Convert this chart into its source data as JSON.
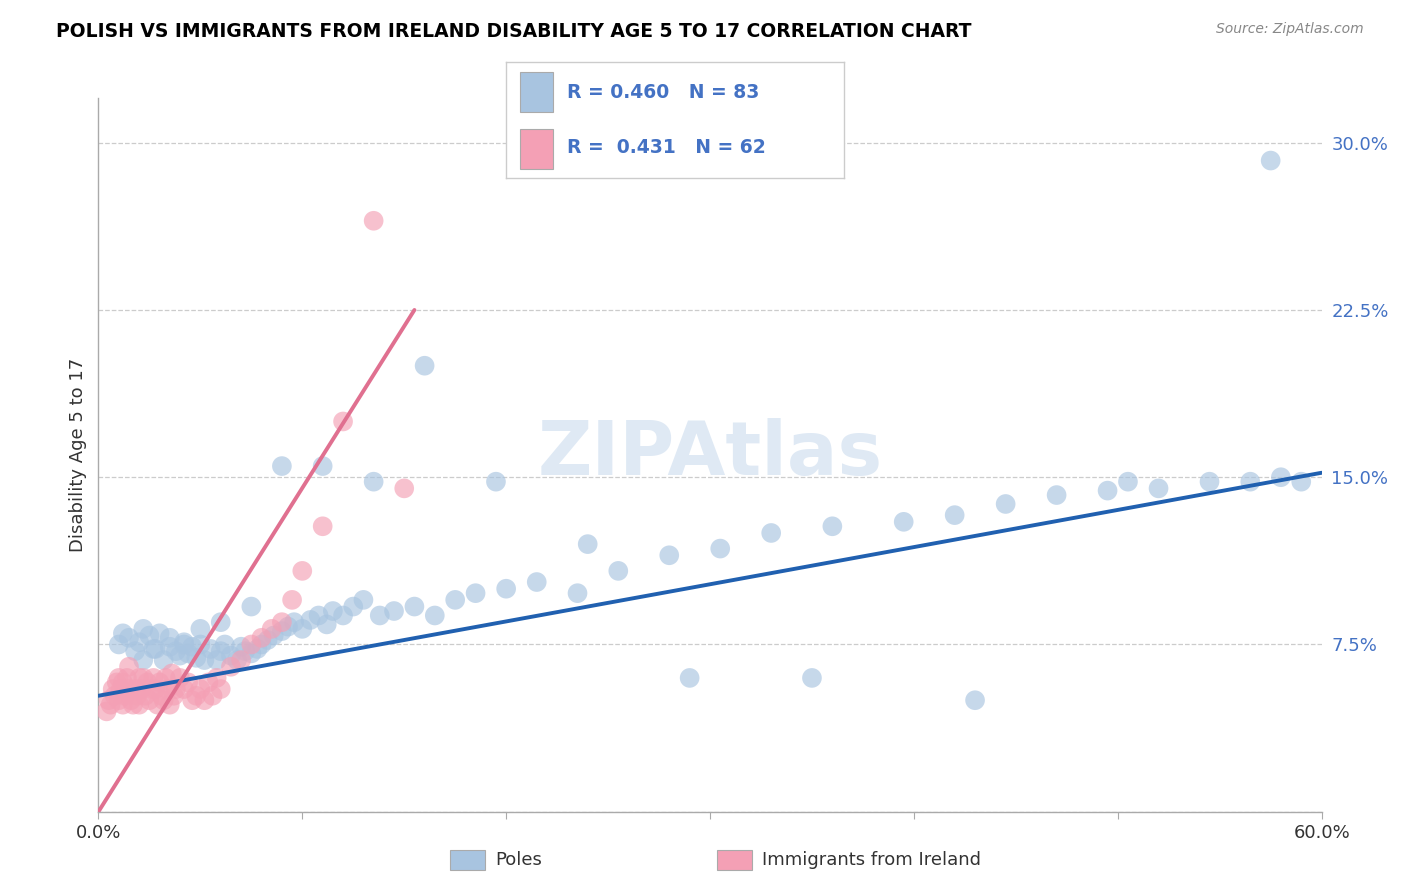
{
  "title": "POLISH VS IMMIGRANTS FROM IRELAND DISABILITY AGE 5 TO 17 CORRELATION CHART",
  "source": "Source: ZipAtlas.com",
  "ylabel": "Disability Age 5 to 17",
  "xlim": [
    0.0,
    0.6
  ],
  "ylim": [
    0.0,
    0.32
  ],
  "xticks": [
    0.0,
    0.1,
    0.2,
    0.3,
    0.4,
    0.5,
    0.6
  ],
  "xticklabels": [
    "0.0%",
    "",
    "",
    "",
    "",
    "",
    "60.0%"
  ],
  "yticks": [
    0.0,
    0.075,
    0.15,
    0.225,
    0.3
  ],
  "yticklabels": [
    "",
    "7.5%",
    "15.0%",
    "22.5%",
    "30.0%"
  ],
  "blue_R": 0.46,
  "blue_N": 83,
  "pink_R": 0.431,
  "pink_N": 62,
  "blue_color": "#a8c4e0",
  "pink_color": "#f4a0b5",
  "blue_line_color": "#2060b0",
  "pink_line_color": "#e07090",
  "watermark": "ZIPAtlas",
  "legend_label_blue": "Poles",
  "legend_label_pink": "Immigrants from Ireland",
  "blue_scatter_x": [
    0.01,
    0.012,
    0.015,
    0.018,
    0.02,
    0.022,
    0.025,
    0.027,
    0.03,
    0.032,
    0.035,
    0.038,
    0.04,
    0.042,
    0.044,
    0.046,
    0.048,
    0.05,
    0.052,
    0.055,
    0.058,
    0.06,
    0.062,
    0.065,
    0.068,
    0.07,
    0.072,
    0.075,
    0.078,
    0.08,
    0.083,
    0.086,
    0.09,
    0.093,
    0.096,
    0.1,
    0.104,
    0.108,
    0.112,
    0.115,
    0.12,
    0.125,
    0.13,
    0.138,
    0.145,
    0.155,
    0.165,
    0.175,
    0.185,
    0.2,
    0.215,
    0.235,
    0.255,
    0.28,
    0.305,
    0.33,
    0.36,
    0.395,
    0.42,
    0.445,
    0.47,
    0.495,
    0.52,
    0.545,
    0.565,
    0.58,
    0.59,
    0.022,
    0.028,
    0.035,
    0.042,
    0.05,
    0.06,
    0.075,
    0.09,
    0.11,
    0.135,
    0.16,
    0.195,
    0.24,
    0.29,
    0.35,
    0.43,
    0.505,
    0.575
  ],
  "blue_scatter_y": [
    0.075,
    0.08,
    0.078,
    0.072,
    0.076,
    0.082,
    0.079,
    0.073,
    0.08,
    0.068,
    0.074,
    0.072,
    0.07,
    0.076,
    0.071,
    0.074,
    0.069,
    0.075,
    0.068,
    0.073,
    0.068,
    0.072,
    0.075,
    0.07,
    0.068,
    0.074,
    0.072,
    0.071,
    0.073,
    0.075,
    0.077,
    0.079,
    0.081,
    0.083,
    0.085,
    0.082,
    0.086,
    0.088,
    0.084,
    0.09,
    0.088,
    0.092,
    0.095,
    0.088,
    0.09,
    0.092,
    0.088,
    0.095,
    0.098,
    0.1,
    0.103,
    0.098,
    0.108,
    0.115,
    0.118,
    0.125,
    0.128,
    0.13,
    0.133,
    0.138,
    0.142,
    0.144,
    0.145,
    0.148,
    0.148,
    0.15,
    0.148,
    0.068,
    0.073,
    0.078,
    0.075,
    0.082,
    0.085,
    0.092,
    0.155,
    0.155,
    0.148,
    0.2,
    0.148,
    0.12,
    0.06,
    0.06,
    0.05,
    0.148,
    0.292
  ],
  "pink_scatter_x": [
    0.004,
    0.005,
    0.006,
    0.007,
    0.008,
    0.009,
    0.01,
    0.01,
    0.011,
    0.012,
    0.012,
    0.013,
    0.014,
    0.015,
    0.015,
    0.016,
    0.017,
    0.018,
    0.019,
    0.02,
    0.02,
    0.021,
    0.022,
    0.023,
    0.024,
    0.025,
    0.026,
    0.027,
    0.028,
    0.029,
    0.03,
    0.031,
    0.032,
    0.033,
    0.034,
    0.035,
    0.036,
    0.037,
    0.038,
    0.04,
    0.042,
    0.044,
    0.046,
    0.048,
    0.05,
    0.052,
    0.054,
    0.056,
    0.058,
    0.06,
    0.065,
    0.07,
    0.075,
    0.08,
    0.085,
    0.09,
    0.095,
    0.1,
    0.11,
    0.12,
    0.135,
    0.15
  ],
  "pink_scatter_y": [
    0.045,
    0.05,
    0.048,
    0.055,
    0.052,
    0.058,
    0.05,
    0.06,
    0.055,
    0.048,
    0.058,
    0.052,
    0.06,
    0.055,
    0.065,
    0.05,
    0.048,
    0.055,
    0.052,
    0.06,
    0.048,
    0.055,
    0.06,
    0.052,
    0.058,
    0.05,
    0.055,
    0.06,
    0.055,
    0.048,
    0.058,
    0.052,
    0.05,
    0.06,
    0.055,
    0.048,
    0.062,
    0.052,
    0.055,
    0.06,
    0.055,
    0.058,
    0.05,
    0.052,
    0.055,
    0.05,
    0.058,
    0.052,
    0.06,
    0.055,
    0.065,
    0.068,
    0.075,
    0.078,
    0.082,
    0.085,
    0.095,
    0.108,
    0.128,
    0.175,
    0.265,
    0.145
  ],
  "pink_trend_x0": 0.0,
  "pink_trend_y0": 0.0,
  "pink_trend_x1": 0.155,
  "pink_trend_y1": 0.225,
  "blue_trend_x0": 0.0,
  "blue_trend_y0": 0.052,
  "blue_trend_x1": 0.6,
  "blue_trend_y1": 0.152
}
